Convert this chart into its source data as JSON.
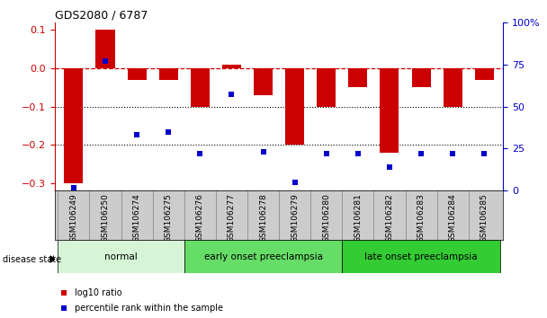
{
  "title": "GDS2080 / 6787",
  "samples": [
    "GSM106249",
    "GSM106250",
    "GSM106274",
    "GSM106275",
    "GSM106276",
    "GSM106277",
    "GSM106278",
    "GSM106279",
    "GSM106280",
    "GSM106281",
    "GSM106282",
    "GSM106283",
    "GSM106284",
    "GSM106285"
  ],
  "log10_ratio": [
    -0.3,
    0.1,
    -0.03,
    -0.03,
    -0.1,
    0.01,
    -0.07,
    -0.2,
    -0.1,
    -0.05,
    -0.22,
    -0.05,
    -0.1,
    -0.03
  ],
  "percentile_rank": [
    2,
    77,
    33,
    35,
    22,
    57,
    23,
    5,
    22,
    22,
    14,
    22,
    22,
    22
  ],
  "groups": [
    {
      "label": "normal",
      "start": 0,
      "end": 4,
      "color": "#d6f5d6"
    },
    {
      "label": "early onset preeclampsia",
      "start": 4,
      "end": 9,
      "color": "#66dd66"
    },
    {
      "label": "late onset preeclampsia",
      "start": 9,
      "end": 14,
      "color": "#33cc33"
    }
  ],
  "left_axis_color": "#cc0000",
  "right_axis_color": "#0000cc",
  "bar_color": "#cc0000",
  "dot_color": "#0000cc",
  "ylim_left": [
    -0.32,
    0.12
  ],
  "ylim_right": [
    0,
    100
  ],
  "yticks_left": [
    -0.3,
    -0.2,
    -0.1,
    0,
    0.1
  ],
  "yticks_right": [
    0,
    25,
    50,
    75,
    100
  ],
  "dotted_lines": [
    -0.1,
    -0.2
  ],
  "legend_items": [
    {
      "label": "log10 ratio",
      "color": "#cc0000"
    },
    {
      "label": "percentile rank within the sample",
      "color": "#0000cc"
    }
  ],
  "disease_state_label": "disease state",
  "ticklabel_box_color": "#cccccc",
  "ticklabel_fontsize": 6.5,
  "bar_width": 0.6
}
